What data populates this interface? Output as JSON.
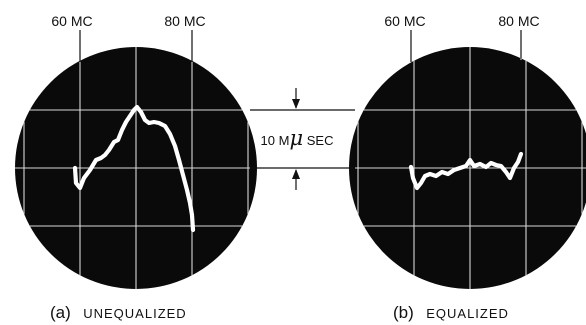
{
  "panels": [
    {
      "id": "a",
      "tick_labels": [
        "60 MC",
        "80 MC"
      ],
      "caption_letter": "(a)",
      "caption_text": "UNEQUALIZED"
    },
    {
      "id": "b",
      "tick_labels": [
        "60 MC",
        "80 MC"
      ],
      "caption_letter": "(b)",
      "caption_text": "EQUALIZED"
    }
  ],
  "dimension": {
    "prefix": "10 M",
    "symbol": "μ",
    "suffix": " SEC"
  },
  "colors": {
    "screen": "#0a0a0a",
    "trace": "#ffffff",
    "ink": "#111111",
    "graticule": "#d8d8d8"
  }
}
